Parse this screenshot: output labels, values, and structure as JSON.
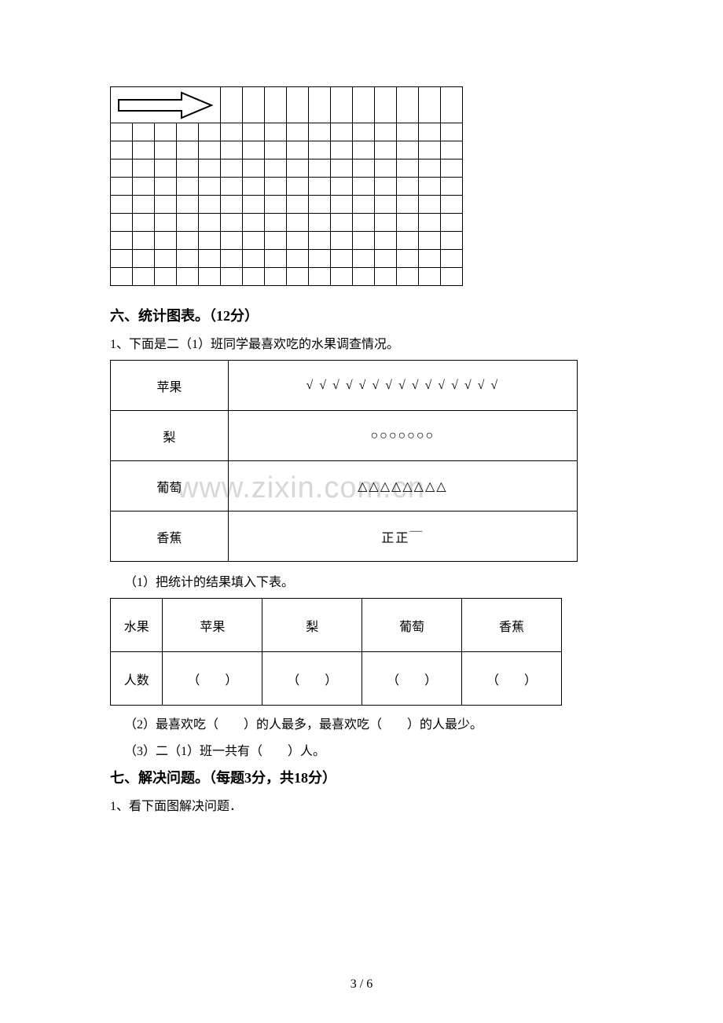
{
  "grid": {
    "cols": 16,
    "row_heights": [
      "tall",
      "short",
      "short",
      "short",
      "short",
      "short",
      "short",
      "short",
      "short",
      "short"
    ],
    "arrow": {
      "row": 0,
      "col_start": 0,
      "col_span": 5
    }
  },
  "section6": {
    "heading": "六、统计图表。（12分）",
    "q1_intro": "1、下面是二（1）班同学最喜欢吃的水果调查情况。",
    "survey": {
      "rows": [
        {
          "label": "苹果",
          "marks": "√ √ √ √ √ √ √ √ √ √ √ √ √ √ √"
        },
        {
          "label": "梨",
          "marks": "○○○○○○○"
        },
        {
          "label": "葡萄",
          "marks": "△△△△△△△△"
        },
        {
          "label": "香蕉",
          "marks": "正正￣"
        }
      ]
    },
    "sub1": "（1）把统计的结果填入下表。",
    "results": {
      "row_header": "水果",
      "count_header": "人数",
      "cols": [
        "苹果",
        "梨",
        "葡萄",
        "香蕉"
      ],
      "blank": "（　　）"
    },
    "sub2": "（2）最喜欢吃（　　）的人最多，最喜欢吃（　　）的人最少。",
    "sub3": "（3）二（1）班一共有（　　）人。"
  },
  "section7": {
    "heading": "七、解决问题。（每题3分，共18分）",
    "q1": "1、看下面图解决问题．"
  },
  "watermark": "www.zixin.com.cn",
  "page_number": "3 / 6"
}
